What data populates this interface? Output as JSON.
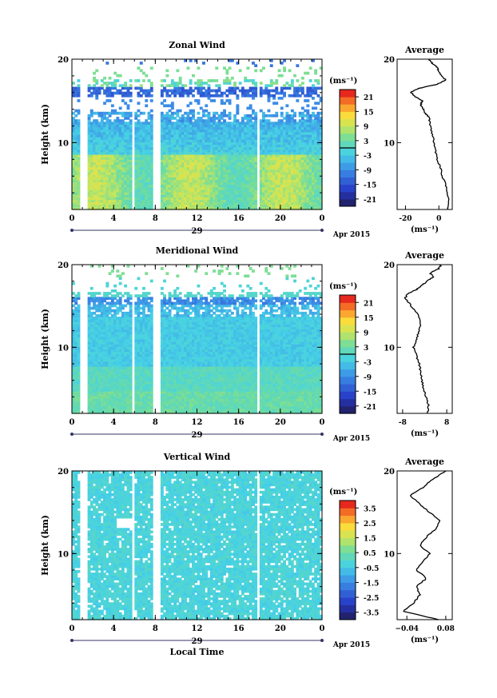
{
  "chart_data": [
    {
      "type": "heatmap",
      "title": "Zonal Wind",
      "xlabel": "",
      "ylabel": "Height (km)",
      "xticks": [
        "0",
        "4",
        "8",
        "12",
        "16",
        "20",
        "0"
      ],
      "xlim": [
        0,
        24
      ],
      "yticks": [
        "10",
        "20"
      ],
      "ylim": [
        2,
        20
      ],
      "date_label": "29",
      "month_label": "Apr 2015",
      "colorbar": {
        "unit": "(ms⁻¹)",
        "ticks": [
          "21",
          "15",
          "9",
          "3",
          "-3",
          "-9",
          "-15",
          "-21"
        ],
        "range": [
          -24,
          24
        ]
      },
      "average": {
        "title": "Average",
        "xlabel": "(ms⁻¹)",
        "xticks": [
          "-20",
          "0"
        ],
        "xlim": [
          -25,
          8
        ],
        "ylim": [
          2,
          20
        ],
        "yticks": [
          "10",
          "20"
        ],
        "profile": [
          [
            2,
            5
          ],
          [
            3,
            6
          ],
          [
            4,
            5
          ],
          [
            5,
            4
          ],
          [
            6,
            2
          ],
          [
            7,
            1
          ],
          [
            8,
            -1
          ],
          [
            9,
            -2
          ],
          [
            10,
            -3
          ],
          [
            11,
            -4
          ],
          [
            12,
            -5
          ],
          [
            13,
            -6
          ],
          [
            13.5,
            -8
          ],
          [
            14,
            -9
          ],
          [
            14.5,
            -11
          ],
          [
            15,
            -10
          ],
          [
            15.5,
            -14
          ],
          [
            16,
            -17
          ],
          [
            16.5,
            -12
          ],
          [
            17,
            -1
          ],
          [
            17.5,
            4
          ],
          [
            18,
            2
          ],
          [
            18.5,
            0
          ],
          [
            19,
            -1
          ],
          [
            19.5,
            -4
          ],
          [
            20,
            -6
          ]
        ]
      }
    },
    {
      "type": "heatmap",
      "title": "Meridional Wind",
      "xlabel": "",
      "ylabel": "Height (km)",
      "xticks": [
        "0",
        "4",
        "8",
        "12",
        "16",
        "20",
        "0"
      ],
      "xlim": [
        0,
        24
      ],
      "yticks": [
        "10",
        "20"
      ],
      "ylim": [
        2,
        20
      ],
      "date_label": "29",
      "month_label": "Apr 2015",
      "colorbar": {
        "unit": "(ms⁻¹)",
        "ticks": [
          "21",
          "15",
          "9",
          "3",
          "-3",
          "-9",
          "-15",
          "-21"
        ],
        "range": [
          -24,
          24
        ]
      },
      "average": {
        "title": "Average",
        "xlabel": "(ms⁻¹)",
        "xticks": [
          "-8",
          "8"
        ],
        "xlim": [
          -10,
          10
        ],
        "ylim": [
          2,
          20
        ],
        "yticks": [
          "10",
          "20"
        ],
        "profile": [
          [
            2,
            1
          ],
          [
            3,
            1.5
          ],
          [
            4,
            0.5
          ],
          [
            5,
            -0.5
          ],
          [
            6,
            -1
          ],
          [
            7,
            -1.5
          ],
          [
            8,
            -2
          ],
          [
            9,
            -3
          ],
          [
            10,
            -4
          ],
          [
            11,
            -3
          ],
          [
            12,
            -2
          ],
          [
            13,
            -1.5
          ],
          [
            14,
            -2.5
          ],
          [
            15,
            -5
          ],
          [
            16,
            -7
          ],
          [
            16.5,
            -6
          ],
          [
            17,
            -3
          ],
          [
            17.5,
            -1
          ],
          [
            18,
            1
          ],
          [
            18.5,
            3
          ],
          [
            19,
            2
          ],
          [
            19.5,
            5
          ],
          [
            20,
            6
          ]
        ]
      }
    },
    {
      "type": "heatmap",
      "title": "Vertical Wind",
      "xlabel": "Local Time",
      "ylabel": "Height (km)",
      "xticks": [
        "0",
        "4",
        "8",
        "12",
        "16",
        "20",
        "0"
      ],
      "xlim": [
        0,
        24
      ],
      "yticks": [
        "10",
        "20"
      ],
      "ylim": [
        2,
        20
      ],
      "date_label": "29",
      "month_label": "Apr 2015",
      "colorbar": {
        "unit": "(ms⁻¹)",
        "ticks": [
          "3.5",
          "2.5",
          "1.5",
          "0.5",
          "-0.5",
          "-1.5",
          "-2.5",
          "-3.5"
        ],
        "range": [
          -4,
          4
        ]
      },
      "average": {
        "title": "Average",
        "xlabel": "(ms⁻¹)",
        "xticks": [
          "−0.04",
          "0.08"
        ],
        "xlim": [
          -0.07,
          0.1
        ],
        "ylim": [
          2,
          20
        ],
        "yticks": [
          "10",
          "20"
        ],
        "profile": [
          [
            2,
            0.06
          ],
          [
            3,
            -0.05
          ],
          [
            4,
            -0.02
          ],
          [
            5,
            0.0
          ],
          [
            6,
            -0.01
          ],
          [
            7,
            0.02
          ],
          [
            8,
            -0.01
          ],
          [
            9,
            0.01
          ],
          [
            10,
            0.03
          ],
          [
            11,
            0.0
          ],
          [
            12,
            0.02
          ],
          [
            13,
            0.05
          ],
          [
            14,
            0.06
          ],
          [
            15,
            0.03
          ],
          [
            16,
            0.0
          ],
          [
            17,
            -0.03
          ],
          [
            18,
            0.01
          ],
          [
            19,
            0.04
          ],
          [
            20,
            0.08
          ]
        ]
      }
    }
  ]
}
